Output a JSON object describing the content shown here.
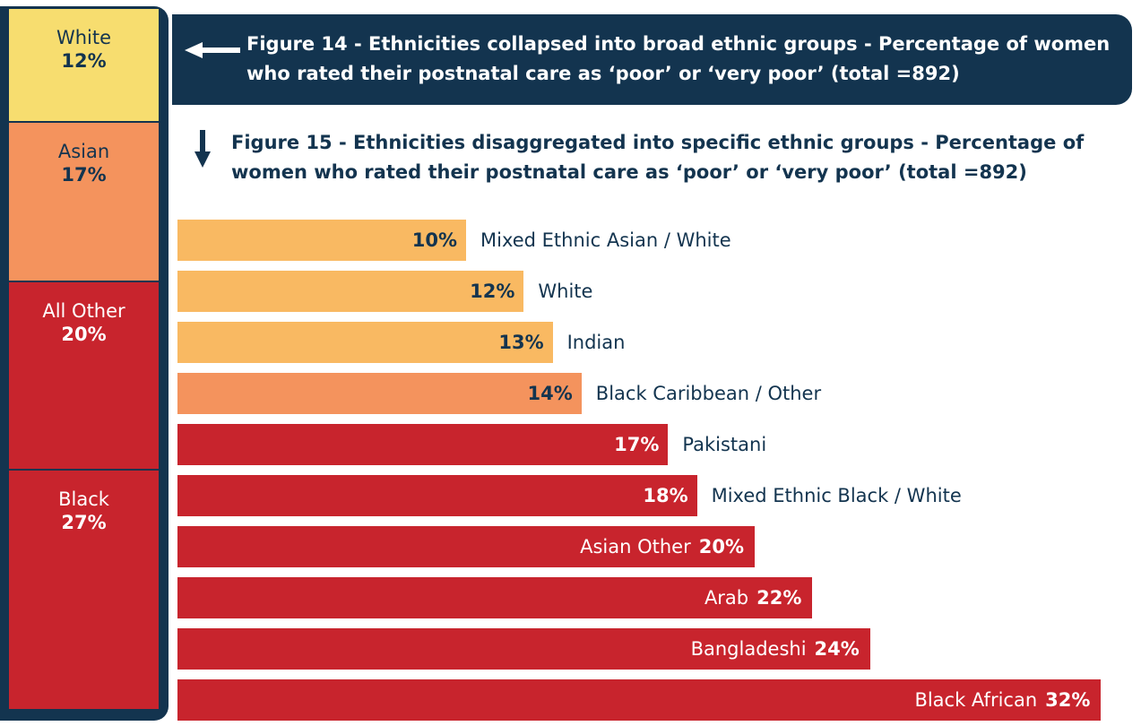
{
  "figure14": {
    "title_bold": "Figure 14",
    "title_rest": " - Ethnicities collapsed into broad ethnic groups - Percentage of women who rated their postnatal care as ‘poor’ or ‘very poor’ (total =892)",
    "segments": [
      {
        "label": "White",
        "value": 12,
        "value_text": "12%",
        "color": "#f7dd6f",
        "text_color": "#13344f"
      },
      {
        "label": "Asian",
        "value": 17,
        "value_text": "17%",
        "color": "#f4935d",
        "text_color": "#13344f"
      },
      {
        "label": "All Other",
        "value": 20,
        "value_text": "20%",
        "color": "#c8242d",
        "text_color": "#ffffff"
      },
      {
        "label": "Black",
        "value": 27,
        "value_text": "27%",
        "color": "#c8242d",
        "text_color": "#ffffff"
      }
    ]
  },
  "figure15": {
    "title_bold": "Figure 15",
    "title_rest": " - Ethnicities disaggregated into specific ethnic groups - Percentage of women who rated their postnatal care as ‘poor’ or ‘very poor’ (total =892)"
  },
  "colors": {
    "navy": "#13344f",
    "light_orange": "#f9b962",
    "orange": "#f4935d",
    "red": "#c8242d",
    "yellow": "#f7dd6f"
  },
  "chart_data": {
    "type": "bar",
    "orientation": "horizontal",
    "categories": [
      "Mixed Ethnic Asian / White",
      "White",
      "Indian",
      "Black Caribbean / Other",
      "Pakistani",
      "Mixed Ethnic Black / White",
      "Asian Other",
      "Arab",
      "Bangladeshi",
      "Black African"
    ],
    "values": [
      10,
      12,
      13,
      14,
      17,
      18,
      20,
      22,
      24,
      32
    ],
    "value_labels": [
      "10%",
      "12%",
      "13%",
      "14%",
      "17%",
      "18%",
      "20%",
      "22%",
      "24%",
      "32%"
    ],
    "bar_colors": [
      "#f9b962",
      "#f9b962",
      "#f9b962",
      "#f4935d",
      "#c8242d",
      "#c8242d",
      "#c8242d",
      "#c8242d",
      "#c8242d",
      "#c8242d"
    ],
    "label_inside": [
      false,
      false,
      false,
      false,
      false,
      false,
      true,
      true,
      true,
      true
    ],
    "grid": false
  }
}
